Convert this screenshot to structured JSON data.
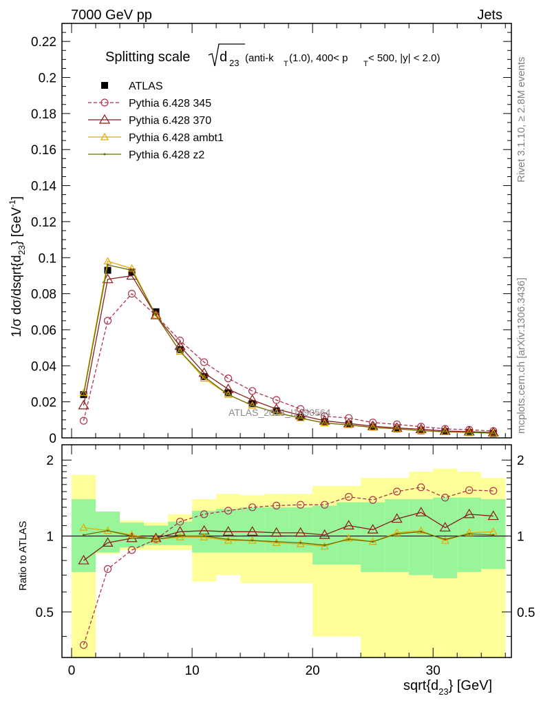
{
  "header": {
    "energy_label": "7000 GeV pp",
    "process_label": "Jets"
  },
  "side_labels": {
    "rivet": "Rivet 3.1.10, ≥ 2.8M events",
    "mcplots": "mcplots.cern.ch [arXiv:1306.3436]"
  },
  "watermark": "ATLAS_2013_I1090564",
  "colors": {
    "atlas": "#000000",
    "p345": "#b0304a",
    "p370": "#8b1a1a",
    "ambt1": "#e8a800",
    "z2": "#6b6b00",
    "band_inner": "#99f599",
    "band_outer": "#ffff99"
  },
  "chart_data": [
    {
      "type": "line",
      "title": {
        "main": "Splitting scale",
        "sub_d": "d",
        "sub_23": "23",
        "cuts_a": "(anti-k",
        "cuts_T": "T",
        "cuts_b": "(1.0), 400< p",
        "cuts_T2": "T",
        "cuts_c": " < 500, |y| < 2.0)"
      },
      "ylabel": "1/σ dσ/dsqrt{d",
      "ylabel_sub": "23",
      "ylabel_end": "} [GeV",
      "ylabel_sup": "-1",
      "ylabel_close": "]",
      "ylim": [
        0,
        0.23
      ],
      "xlim": [
        -0.8,
        36.5
      ],
      "y_ticks": [
        "0",
        "0.02",
        "0.04",
        "0.06",
        "0.08",
        "0.1",
        "0.12",
        "0.14",
        "0.16",
        "0.18",
        "0.2",
        "0.22"
      ],
      "y_tick_values": [
        0,
        0.02,
        0.04,
        0.06,
        0.08,
        0.1,
        0.12,
        0.14,
        0.16,
        0.18,
        0.2,
        0.22
      ],
      "legend_position": "top-left",
      "x": [
        1,
        3,
        5,
        7,
        9,
        11,
        13,
        15,
        17,
        19,
        21,
        23,
        25,
        27,
        29,
        31,
        33,
        35
      ],
      "series": [
        {
          "name": "ATLAS",
          "key": "atlas",
          "values": [
            0.024,
            0.093,
            0.092,
            0.07,
            0.049,
            0.034,
            0.025,
            0.019,
            0.015,
            0.0115,
            0.009,
            0.0075,
            0.006,
            0.005,
            0.004,
            0.0035,
            0.003,
            0.0025
          ]
        },
        {
          "name": "Pythia 6.428 345",
          "key": "p345",
          "values": [
            0.0095,
            0.065,
            0.08,
            0.068,
            0.054,
            0.042,
            0.033,
            0.026,
            0.021,
            0.016,
            0.012,
            0.011,
            0.0085,
            0.0075,
            0.0062,
            0.005,
            0.0045,
            0.0038
          ]
        },
        {
          "name": "Pythia 6.428 370",
          "key": "p370",
          "values": [
            0.018,
            0.088,
            0.09,
            0.068,
            0.051,
            0.036,
            0.027,
            0.021,
            0.016,
            0.0125,
            0.0095,
            0.008,
            0.0065,
            0.0055,
            0.0048,
            0.0038,
            0.0035,
            0.003
          ]
        },
        {
          "name": "Pythia 6.428 ambt1",
          "key": "ambt1",
          "values": [
            0.025,
            0.098,
            0.094,
            0.068,
            0.048,
            0.033,
            0.024,
            0.018,
            0.014,
            0.011,
            0.0082,
            0.0072,
            0.0058,
            0.005,
            0.004,
            0.0034,
            0.003,
            0.0026
          ]
        },
        {
          "name": "Pythia 6.428 z2",
          "key": "z2",
          "values": [
            0.024,
            0.096,
            0.093,
            0.068,
            0.048,
            0.034,
            0.024,
            0.018,
            0.014,
            0.011,
            0.0082,
            0.0072,
            0.0058,
            0.005,
            0.004,
            0.0034,
            0.003,
            0.0026
          ]
        }
      ]
    },
    {
      "type": "line",
      "ylabel": "Ratio to ATLAS",
      "xlabel": "sqrt{d",
      "xlabel_sub": "23",
      "xlabel_end": "} [GeV]",
      "ylim": [
        0.33,
        2.3
      ],
      "y_ticks": [
        "0.5",
        "1",
        "2"
      ],
      "y_tick_values": [
        0.5,
        1,
        2
      ],
      "x_ticks": [
        "0",
        "10",
        "20",
        "30"
      ],
      "x_tick_values": [
        0,
        10,
        20,
        30
      ],
      "x": [
        1,
        3,
        5,
        7,
        9,
        11,
        13,
        15,
        17,
        19,
        21,
        23,
        25,
        27,
        29,
        31,
        33,
        35
      ],
      "bands": {
        "edges": [
          0,
          2,
          4,
          6,
          8,
          10,
          12,
          14,
          16,
          18,
          20,
          22,
          24,
          26,
          28,
          30,
          32,
          34,
          36
        ],
        "inner_low": [
          0.72,
          0.86,
          0.9,
          0.92,
          0.92,
          0.86,
          0.86,
          0.86,
          0.86,
          0.86,
          0.77,
          0.77,
          0.72,
          0.72,
          0.7,
          0.68,
          0.72,
          0.74
        ],
        "inner_high": [
          1.4,
          1.25,
          1.13,
          1.1,
          1.14,
          1.26,
          1.28,
          1.3,
          1.3,
          1.3,
          1.32,
          1.36,
          1.36,
          1.4,
          1.4,
          1.42,
          1.42,
          1.4
        ],
        "outer_low": [
          0.33,
          0.85,
          0.88,
          0.88,
          0.88,
          0.66,
          0.7,
          0.65,
          0.65,
          0.65,
          0.4,
          0.4,
          0.33,
          0.33,
          0.33,
          0.33,
          0.33,
          0.33
        ],
        "outer_high": [
          1.75,
          1.25,
          1.15,
          1.13,
          1.22,
          1.4,
          1.47,
          1.45,
          1.47,
          1.47,
          1.58,
          1.58,
          1.7,
          1.7,
          1.8,
          1.85,
          1.8,
          1.7
        ]
      },
      "series": [
        {
          "name": "Pythia 6.428 345",
          "key": "p345",
          "values": [
            0.37,
            0.74,
            0.88,
            0.97,
            1.14,
            1.22,
            1.26,
            1.3,
            1.32,
            1.33,
            1.33,
            1.43,
            1.39,
            1.5,
            1.56,
            1.42,
            1.52,
            1.51
          ]
        },
        {
          "name": "Pythia 6.428 370",
          "key": "p370",
          "values": [
            0.8,
            0.94,
            0.98,
            0.98,
            1.04,
            1.05,
            1.04,
            1.04,
            1.03,
            1.03,
            1.01,
            1.1,
            1.06,
            1.17,
            1.24,
            1.08,
            1.22,
            1.2
          ]
        },
        {
          "name": "Pythia 6.428 ambt1",
          "key": "ambt1",
          "values": [
            1.08,
            1.05,
            1.01,
            0.97,
            0.99,
            0.99,
            0.96,
            0.96,
            0.94,
            0.93,
            0.91,
            0.98,
            0.95,
            1.03,
            1.05,
            0.96,
            1.03,
            1.04
          ]
        },
        {
          "name": "Pythia 6.428 z2",
          "key": "z2",
          "values": [
            1.01,
            1.05,
            1.0,
            0.97,
            1.0,
            1.0,
            0.97,
            0.96,
            0.95,
            0.94,
            0.92,
            0.97,
            0.95,
            1.02,
            1.04,
            0.97,
            1.02,
            1.01
          ]
        }
      ]
    }
  ]
}
